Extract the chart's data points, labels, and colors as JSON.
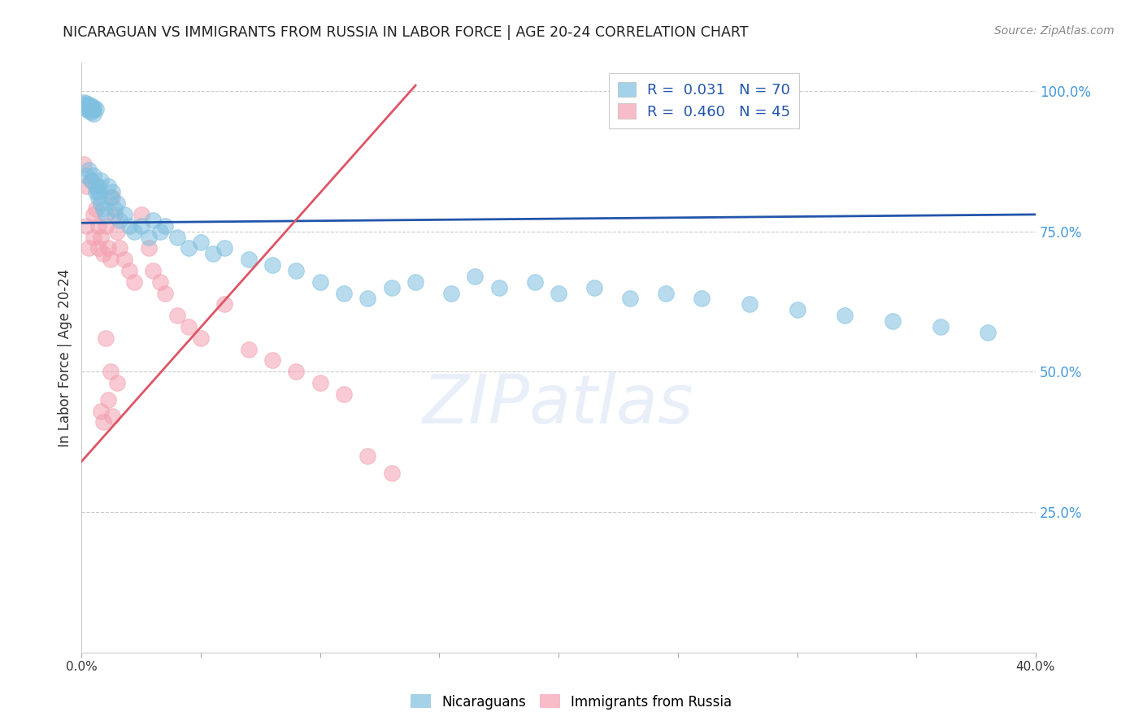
{
  "title": "NICARAGUAN VS IMMIGRANTS FROM RUSSIA IN LABOR FORCE | AGE 20-24 CORRELATION CHART",
  "source": "Source: ZipAtlas.com",
  "ylabel": "In Labor Force | Age 20-24",
  "ytick_labels": [
    "100.0%",
    "75.0%",
    "50.0%",
    "25.0%"
  ],
  "ytick_values": [
    1.0,
    0.75,
    0.5,
    0.25
  ],
  "xlim": [
    0.0,
    0.4
  ],
  "ylim": [
    0.0,
    1.05
  ],
  "blue_color": "#7fbfdf",
  "pink_color": "#f4a0b0",
  "blue_line_color": "#2255aa",
  "pink_line_color": "#dd5566",
  "grid_color": "#cccccc",
  "bg_color": "#ffffff",
  "watermark": "ZIPatlas",
  "blue_scatter_x": [
    0.001,
    0.001,
    0.002,
    0.002,
    0.002,
    0.003,
    0.003,
    0.003,
    0.004,
    0.004,
    0.004,
    0.005,
    0.005,
    0.005,
    0.006,
    0.006,
    0.007,
    0.007,
    0.008,
    0.008,
    0.009,
    0.01,
    0.011,
    0.012,
    0.013,
    0.014,
    0.015,
    0.016,
    0.018,
    0.02,
    0.022,
    0.025,
    0.028,
    0.03,
    0.033,
    0.035,
    0.04,
    0.045,
    0.05,
    0.055,
    0.06,
    0.07,
    0.08,
    0.09,
    0.1,
    0.11,
    0.12,
    0.13,
    0.14,
    0.155,
    0.165,
    0.175,
    0.19,
    0.2,
    0.215,
    0.23,
    0.245,
    0.26,
    0.28,
    0.3,
    0.32,
    0.34,
    0.36,
    0.38,
    0.002,
    0.003,
    0.004,
    0.005,
    0.006,
    0.007
  ],
  "blue_scatter_y": [
    0.98,
    0.975,
    0.978,
    0.972,
    0.968,
    0.976,
    0.97,
    0.965,
    0.974,
    0.969,
    0.963,
    0.971,
    0.966,
    0.96,
    0.968,
    0.82,
    0.83,
    0.81,
    0.84,
    0.8,
    0.79,
    0.78,
    0.83,
    0.81,
    0.82,
    0.79,
    0.8,
    0.77,
    0.78,
    0.76,
    0.75,
    0.76,
    0.74,
    0.77,
    0.75,
    0.76,
    0.74,
    0.72,
    0.73,
    0.71,
    0.72,
    0.7,
    0.69,
    0.68,
    0.66,
    0.64,
    0.63,
    0.65,
    0.66,
    0.64,
    0.67,
    0.65,
    0.66,
    0.64,
    0.65,
    0.63,
    0.64,
    0.63,
    0.62,
    0.61,
    0.6,
    0.59,
    0.58,
    0.57,
    0.85,
    0.86,
    0.84,
    0.85,
    0.83,
    0.82
  ],
  "pink_scatter_x": [
    0.001,
    0.002,
    0.002,
    0.003,
    0.004,
    0.005,
    0.005,
    0.006,
    0.007,
    0.007,
    0.008,
    0.009,
    0.01,
    0.011,
    0.012,
    0.013,
    0.014,
    0.015,
    0.016,
    0.018,
    0.02,
    0.022,
    0.025,
    0.028,
    0.03,
    0.033,
    0.035,
    0.04,
    0.045,
    0.05,
    0.06,
    0.07,
    0.08,
    0.09,
    0.1,
    0.11,
    0.12,
    0.13,
    0.01,
    0.012,
    0.015,
    0.008,
    0.009,
    0.011,
    0.013
  ],
  "pink_scatter_y": [
    0.87,
    0.83,
    0.76,
    0.72,
    0.84,
    0.78,
    0.74,
    0.79,
    0.76,
    0.72,
    0.74,
    0.71,
    0.76,
    0.72,
    0.7,
    0.81,
    0.78,
    0.75,
    0.72,
    0.7,
    0.68,
    0.66,
    0.78,
    0.72,
    0.68,
    0.66,
    0.64,
    0.6,
    0.58,
    0.56,
    0.62,
    0.54,
    0.52,
    0.5,
    0.48,
    0.46,
    0.35,
    0.32,
    0.56,
    0.5,
    0.48,
    0.43,
    0.41,
    0.45,
    0.42
  ],
  "blue_line_x": [
    0.0,
    0.4
  ],
  "blue_line_y": [
    0.765,
    0.78
  ],
  "pink_line_x": [
    0.0,
    0.14
  ],
  "pink_line_y": [
    0.34,
    1.01
  ]
}
